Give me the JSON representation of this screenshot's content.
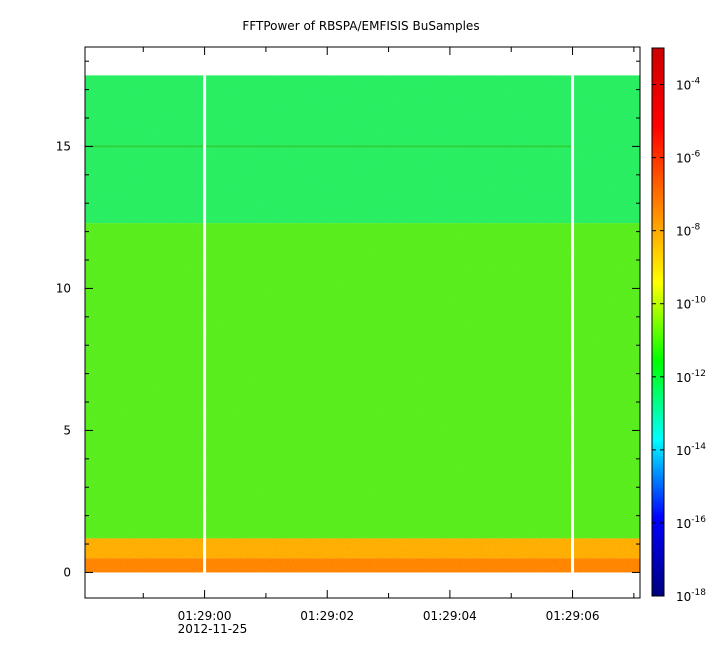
{
  "chart_data": {
    "type": "heatmap",
    "title": "FFTPower of RBSPA/EMFISIS  BuSamples",
    "xlabel": "",
    "ylabel": "",
    "x_axis": {
      "kind": "time",
      "start": "01:28:58.05",
      "end": "01:29:07.1",
      "ticks": [
        "01:29:00",
        "01:29:02",
        "01:29:04",
        "01:29:06"
      ],
      "first_tick_date": "2012-11-25",
      "minor_tick_step_seconds": 1
    },
    "y_axis": {
      "range": [
        -0.9,
        18.5
      ],
      "ticks": [
        0,
        5,
        10,
        15
      ],
      "tick_labels": [
        "0",
        "5",
        "10",
        "15"
      ]
    },
    "colorbar": {
      "scale": "log",
      "range": [
        1e-18,
        0.001
      ],
      "ticks": [
        {
          "base": "10",
          "exp": "-18"
        },
        {
          "base": "10",
          "exp": "-16"
        },
        {
          "base": "10",
          "exp": "-14"
        },
        {
          "base": "10",
          "exp": "-12"
        },
        {
          "base": "10",
          "exp": "-10"
        },
        {
          "base": "10",
          "exp": "-8"
        },
        {
          "base": "10",
          "exp": "-6"
        },
        {
          "base": "10",
          "exp": "-4"
        }
      ],
      "colormap": [
        "#00007f",
        "#0000ff",
        "#00ffff",
        "#00ff00",
        "#ffff00",
        "#ff7f00",
        "#ff0000",
        "#cc0000"
      ]
    },
    "data_extent_y": [
      0,
      17.5
    ],
    "data_gaps_x": [
      "01:29:00",
      "01:29:06"
    ],
    "bands": [
      {
        "y_from": 0,
        "y_to": 0.5,
        "level": "1e-8",
        "color": "#ff9a00"
      },
      {
        "y_from": 0.5,
        "y_to": 1.2,
        "level": "1e-8",
        "color": "#ffd700"
      },
      {
        "y_from": 1.2,
        "y_to": 12.3,
        "level": "1e-10",
        "color": "#3ff020"
      },
      {
        "y_from": 12.3,
        "y_to": 17.5,
        "level": "1e-12",
        "color": "#00f17a"
      }
    ],
    "line_feature_y": 15,
    "background_color": "#ffffff"
  }
}
